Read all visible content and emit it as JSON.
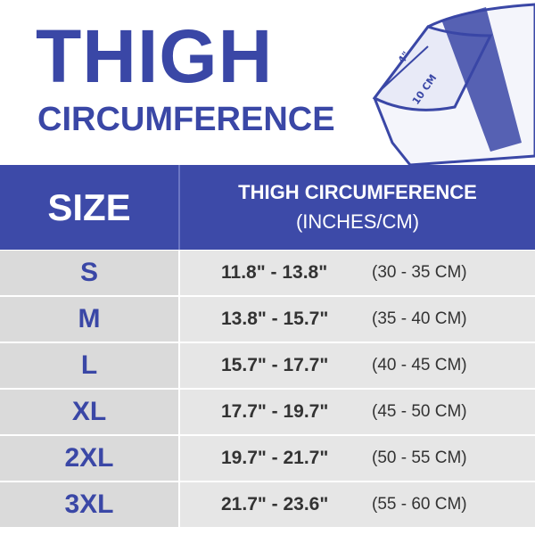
{
  "header": {
    "title_line1": "THIGH",
    "title_line2": "CIRCUMFERENCE"
  },
  "illustration": {
    "inches_label": "4\"",
    "cm_label": "10 CM"
  },
  "table": {
    "headers": {
      "size": "SIZE",
      "measure": "THIGH CIRCUMFERENCE",
      "units": "(INCHES/CM)"
    },
    "rows": [
      [
        "S",
        "11.8\" - 13.8\"",
        "(30 - 35 CM)"
      ],
      [
        "M",
        "13.8\" - 15.7\"",
        "(35 - 40 CM)"
      ],
      [
        "L",
        "15.7\" - 17.7\"",
        "(40 - 45 CM)"
      ],
      [
        "XL",
        "17.7\" - 19.7\"",
        "(45 - 50 CM)"
      ],
      [
        "2XL",
        "19.7\" - 21.7\"",
        "(50 - 55 CM)"
      ],
      [
        "3XL",
        "21.7\" - 23.6\"",
        "(55 - 60 CM)"
      ]
    ]
  }
}
